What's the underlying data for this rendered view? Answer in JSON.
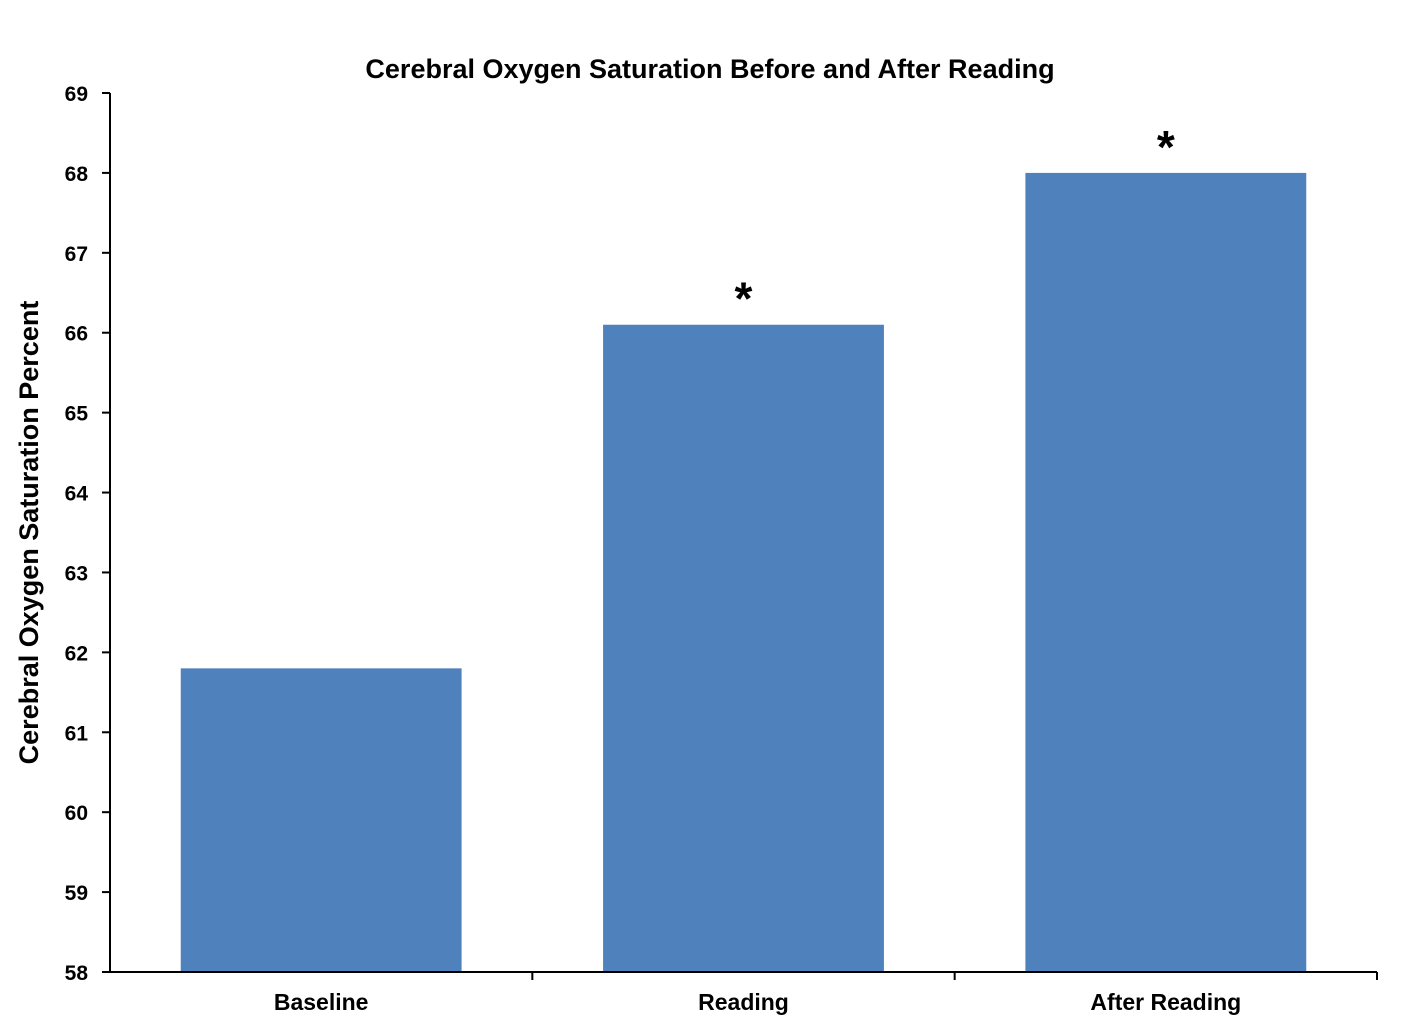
{
  "chart_data": {
    "type": "bar",
    "title": "Cerebral Oxygen Saturation Before and After Reading",
    "xlabel": "",
    "ylabel": "Cerebral Oxygen Saturation Percent",
    "ylim": [
      58,
      69
    ],
    "yticks": [
      "58",
      "59",
      "60",
      "61",
      "62",
      "63",
      "64",
      "65",
      "66",
      "67",
      "68",
      "69"
    ],
    "categories": [
      "Baseline",
      "Reading",
      "After Reading"
    ],
    "values": [
      61.8,
      66.1,
      68.0
    ],
    "annotations": [
      "",
      "*",
      "*"
    ],
    "bar_color": "#4F81BD",
    "grid": false,
    "legend": "none"
  }
}
